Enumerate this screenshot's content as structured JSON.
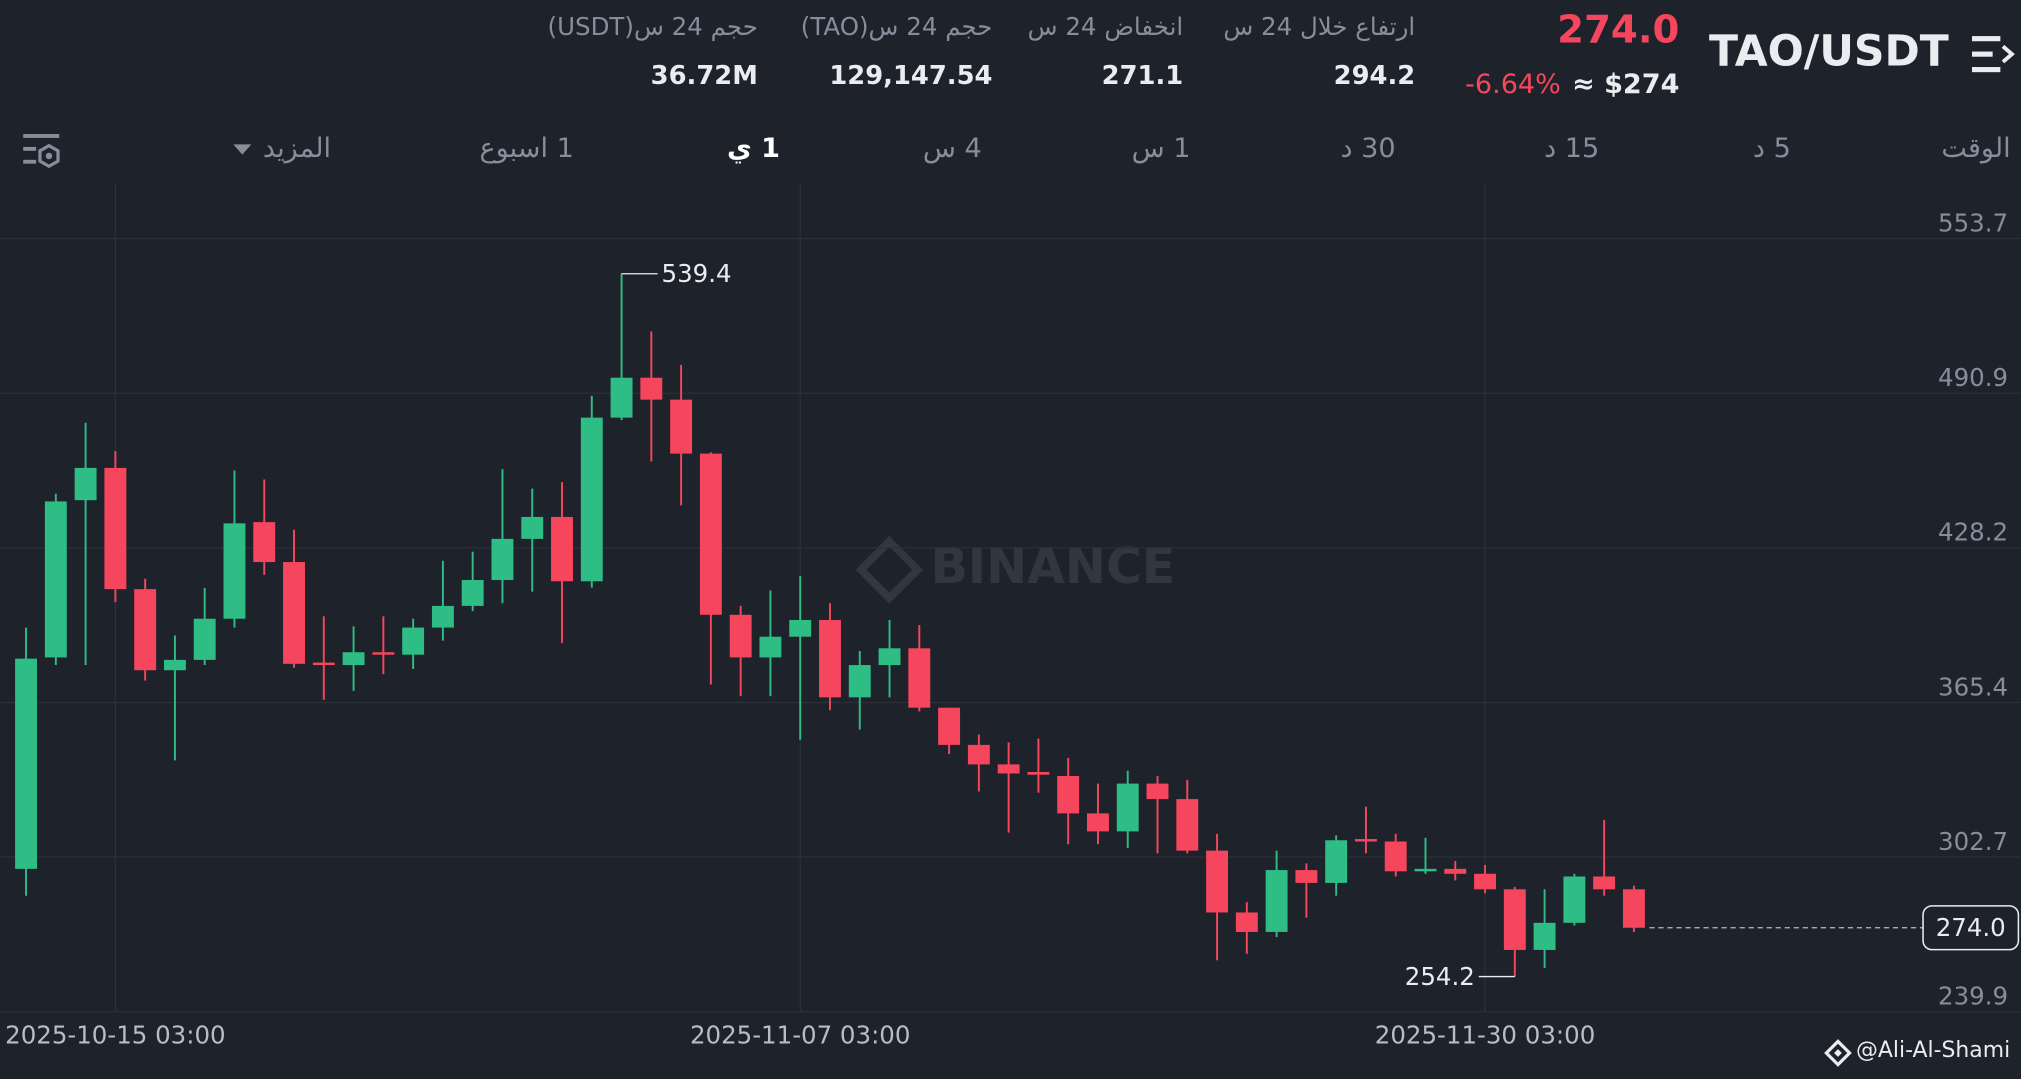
{
  "header": {
    "pair": "TAO/USDT",
    "price": "274.0",
    "price_usd": "≈ $274",
    "change": "-6.64%",
    "stats": [
      {
        "label": "ارتفاع خلال 24 س",
        "value": "294.2"
      },
      {
        "label": "انخفاض 24 س",
        "value": "271.1"
      },
      {
        "label": "حجم 24 س(TAO)",
        "value": "129,147.54"
      },
      {
        "label": "حجم 24 س(USDT)",
        "value": "36.72M"
      }
    ]
  },
  "tabs": [
    "الوقت",
    "5 د",
    "15 د",
    "30 د",
    "1 س",
    "4 س",
    "1 ي",
    "1 اسبوع",
    "المزيد"
  ],
  "watermark": "BINANCE",
  "credit": "@Ali-Al-Shami",
  "chart_data": {
    "type": "candlestick",
    "x": [
      "2025-10-12 03:00",
      "2025-10-13 03:00",
      "2025-10-14 03:00",
      "2025-10-15 03:00",
      "2025-10-16 03:00",
      "2025-10-17 03:00",
      "2025-10-18 03:00",
      "2025-10-19 03:00",
      "2025-10-20 03:00",
      "2025-10-21 03:00",
      "2025-10-22 03:00",
      "2025-10-23 03:00",
      "2025-10-24 03:00",
      "2025-10-25 03:00",
      "2025-10-26 03:00",
      "2025-10-27 03:00",
      "2025-10-28 03:00",
      "2025-10-29 03:00",
      "2025-10-30 03:00",
      "2025-10-31 03:00",
      "2025-11-01 03:00",
      "2025-11-02 03:00",
      "2025-11-03 03:00",
      "2025-11-04 03:00",
      "2025-11-05 03:00",
      "2025-11-06 03:00",
      "2025-11-07 03:00",
      "2025-11-08 03:00",
      "2025-11-09 03:00",
      "2025-11-10 03:00",
      "2025-11-11 03:00",
      "2025-11-12 03:00",
      "2025-11-13 03:00",
      "2025-11-14 03:00",
      "2025-11-15 03:00",
      "2025-11-16 03:00",
      "2025-11-17 03:00",
      "2025-11-18 03:00",
      "2025-11-19 03:00",
      "2025-11-20 03:00",
      "2025-11-21 03:00",
      "2025-11-22 03:00",
      "2025-11-23 03:00",
      "2025-11-24 03:00",
      "2025-11-25 03:00",
      "2025-11-26 03:00",
      "2025-11-27 03:00",
      "2025-11-28 03:00",
      "2025-11-29 03:00",
      "2025-11-30 03:00",
      "2025-12-01 03:00",
      "2025-12-02 03:00",
      "2025-12-03 03:00",
      "2025-12-04 03:00",
      "2025-12-05 03:00"
    ],
    "open": [
      297.9,
      383.7,
      447.5,
      460.6,
      411.4,
      378.5,
      382.7,
      399.4,
      438.6,
      422.4,
      381.6,
      380.6,
      385.8,
      384.8,
      395.8,
      404.6,
      415.1,
      431.8,
      440.7,
      414.6,
      481.0,
      497.2,
      488.3,
      466.4,
      401.0,
      383.7,
      392.1,
      398.9,
      367.5,
      380.6,
      387.4,
      363.3,
      348.2,
      340.3,
      337.2,
      335.6,
      320.4,
      313.1,
      332.5,
      326.2,
      305.3,
      280.2,
      272.3,
      297.4,
      292.2,
      310.0,
      309.0,
      296.9,
      297.9,
      295.9,
      289.6,
      265.0,
      276.0,
      294.8,
      289.6
    ],
    "high": [
      395.8,
      450.1,
      478.9,
      467.4,
      415.6,
      392.6,
      411.9,
      459.6,
      455.9,
      435.5,
      400.4,
      396.3,
      400.4,
      399.4,
      422.9,
      426.6,
      460.1,
      452.2,
      454.9,
      489.9,
      539.4,
      516.0,
      502.4,
      466.9,
      404.6,
      410.9,
      416.7,
      405.7,
      386.3,
      398.9,
      396.8,
      363.3,
      352.4,
      349.2,
      350.8,
      342.9,
      332.5,
      337.7,
      335.6,
      334.0,
      312.1,
      284.4,
      305.3,
      300.1,
      311.5,
      323.1,
      312.1,
      310.5,
      301.1,
      299.5,
      290.6,
      289.6,
      295.9,
      317.8,
      291.1
    ],
    "low": [
      287.0,
      380.6,
      380.6,
      406.2,
      374.3,
      341.9,
      380.6,
      395.8,
      417.2,
      379.5,
      366.5,
      370.1,
      376.9,
      379.0,
      390.5,
      402.5,
      405.7,
      410.4,
      389.5,
      412.0,
      480.0,
      463.2,
      445.4,
      372.7,
      368.0,
      368.0,
      350.3,
      362.3,
      354.4,
      367.5,
      361.8,
      344.5,
      329.3,
      312.6,
      328.8,
      307.9,
      307.9,
      306.3,
      304.2,
      304.2,
      260.8,
      263.4,
      270.2,
      278.1,
      287.0,
      304.2,
      294.8,
      295.9,
      293.2,
      288.0,
      254.2,
      257.7,
      274.9,
      287.0,
      272.3
    ],
    "close": [
      383.2,
      447.0,
      460.6,
      411.4,
      378.5,
      382.7,
      399.4,
      438.1,
      422.4,
      381.1,
      380.6,
      385.8,
      384.8,
      395.8,
      404.6,
      415.1,
      431.8,
      440.7,
      414.6,
      481.0,
      497.2,
      488.3,
      466.4,
      401.0,
      383.7,
      392.1,
      398.9,
      367.5,
      380.6,
      387.4,
      363.3,
      348.2,
      340.3,
      336.6,
      336.1,
      320.4,
      313.1,
      332.5,
      326.2,
      305.3,
      280.2,
      272.3,
      297.4,
      292.2,
      309.5,
      309.0,
      296.9,
      297.9,
      295.9,
      289.6,
      265.0,
      276.0,
      294.8,
      289.6,
      274.0
    ],
    "up_color": "#2ebd85",
    "down_color": "#f6465d",
    "xlim": [
      "2025-10-11 06:00",
      "2025-12-18 03:00"
    ],
    "xticks": [
      "2025-10-15 03:00",
      "2025-11-07 03:00",
      "2025-11-30 03:00"
    ],
    "ylim": [
      239.9,
      576.2
    ],
    "yticks": [
      553.7,
      490.9,
      428.2,
      365.4,
      302.7,
      239.9
    ],
    "grid": true,
    "high_marker": 539.4,
    "low_marker": 254.2,
    "last_price": {
      "value": 274,
      "label": "274.0"
    }
  }
}
